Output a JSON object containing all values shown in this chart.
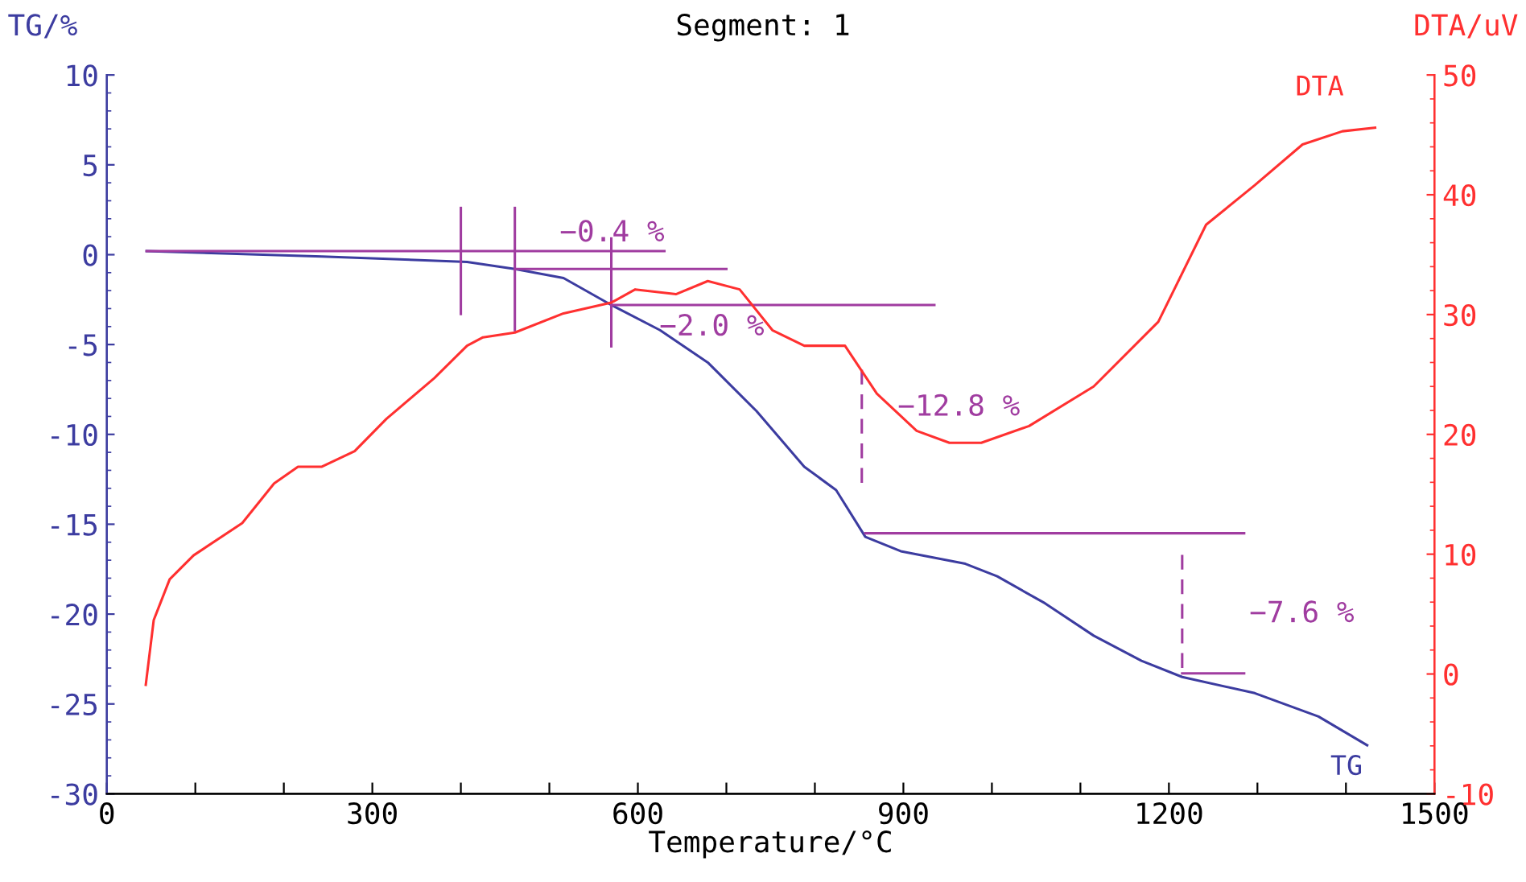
{
  "chart_data": {
    "type": "line",
    "title": "Segment: 1",
    "xlabel": "Temperature/°C",
    "ylabel": "TG/%",
    "y2label": "DTA/uV",
    "xlim": [
      0,
      1500
    ],
    "xticks": [
      0,
      {
        "value": 100,
        "label": null
      },
      {
        "value": 200,
        "label": null
      },
      300,
      {
        "value": 400,
        "label": null
      },
      {
        "value": 500,
        "label": null
      },
      600,
      {
        "value": 700,
        "label": null
      },
      {
        "value": 800,
        "label": null
      },
      900,
      {
        "value": 1000,
        "label": null
      },
      {
        "value": 1100,
        "label": null
      },
      1200,
      {
        "value": 1300,
        "label": null
      },
      {
        "value": 1400,
        "label": null
      },
      1500
    ],
    "ylim": [
      -30,
      10
    ],
    "yticks": [
      -30,
      -25,
      -20,
      -15,
      -10,
      -5,
      0,
      5,
      10
    ],
    "y2lim": [
      -10,
      50
    ],
    "y2ticks": [
      -10,
      0,
      10,
      20,
      30,
      40,
      50
    ],
    "grid": false,
    "legend": false,
    "marker": "none",
    "series": [
      {
        "name": "TG",
        "color": "#3c3ca0",
        "x": [
          45,
          243,
          407,
          461,
          516,
          570,
          625,
          679,
          734,
          788,
          824,
          857,
          897,
          970,
          1006,
          1060,
          1115,
          1169,
          1215,
          1297,
          1369,
          1424
        ],
        "values": [
          0.2,
          -0.1,
          -0.4,
          -0.8,
          -1.3,
          -2.8,
          -4.2,
          -6.0,
          -8.7,
          -11.8,
          -13.1,
          -15.7,
          -16.5,
          -17.2,
          -17.9,
          -19.4,
          -21.2,
          -22.6,
          -23.5,
          -24.4,
          -25.7,
          -27.3
        ]
      },
      {
        "name": "DTA",
        "color": "#ff3030",
        "axis": "y2",
        "x": [
          44,
          53,
          71,
          98,
          153,
          189,
          216,
          243,
          280,
          316,
          370,
          407,
          425,
          461,
          516,
          570,
          597,
          643,
          679,
          715,
          752,
          788,
          834,
          870,
          915,
          952,
          988,
          1042,
          1115,
          1188,
          1242,
          1297,
          1351,
          1396,
          1433
        ],
        "values": [
          -0.9,
          4.5,
          7.9,
          9.9,
          12.6,
          15.9,
          17.3,
          17.3,
          18.6,
          21.3,
          24.7,
          27.4,
          28.1,
          28.5,
          30.1,
          31.0,
          32.1,
          31.7,
          32.8,
          32.1,
          28.7,
          27.4,
          27.4,
          23.4,
          20.3,
          19.3,
          19.3,
          20.7,
          24.0,
          29.4,
          37.5,
          40.8,
          44.2,
          45.3,
          45.6
        ]
      },
      {
        "color": "#a03ca0",
        "x": [
          45,
          630
        ],
        "values": [
          0.2,
          0.2
        ]
      },
      {
        "color": "#a03ca0",
        "x": [
          461,
          700
        ],
        "values": [
          -0.8,
          -0.8
        ]
      },
      {
        "color": "#a03ca0",
        "x": [
          570,
          935
        ],
        "values": [
          -2.8,
          -2.8
        ]
      },
      {
        "color": "#a03ca0",
        "x": [
          857,
          1285
        ],
        "values": [
          -15.5,
          -15.5
        ]
      },
      {
        "color": "#a03ca0",
        "x": [
          1215,
          1285
        ],
        "values": [
          -23.3,
          -23.3
        ]
      },
      {
        "color": "#a03ca0",
        "x": [
          400,
          400
        ],
        "values": [
          2.6,
          -3.3
        ]
      },
      {
        "color": "#a03ca0",
        "x": [
          461,
          461
        ],
        "values": [
          2.6,
          -4.2
        ]
      },
      {
        "color": "#a03ca0",
        "x": [
          570,
          570
        ],
        "values": [
          0.9,
          -5.1
        ]
      },
      {
        "color": "#a03ca0",
        "line_style": "dashed",
        "x": [
          853,
          853
        ],
        "values": [
          -6.4,
          -12.7
        ]
      },
      {
        "color": "#a03ca0",
        "line_style": "dashed",
        "x": [
          1215,
          1215
        ],
        "values": [
          -16.7,
          -23.5
        ]
      }
    ],
    "annotations": [
      {
        "text": "−0.4 %",
        "x": 461,
        "y": -0.8
      },
      {
        "text": "−2.0 %",
        "x": 700,
        "y": -2.8
      },
      {
        "text": "−12.8 %",
        "x": 853,
        "y": -9.5
      },
      {
        "text": "−7.6 %",
        "x": 1215,
        "y": -20.0
      }
    ]
  }
}
